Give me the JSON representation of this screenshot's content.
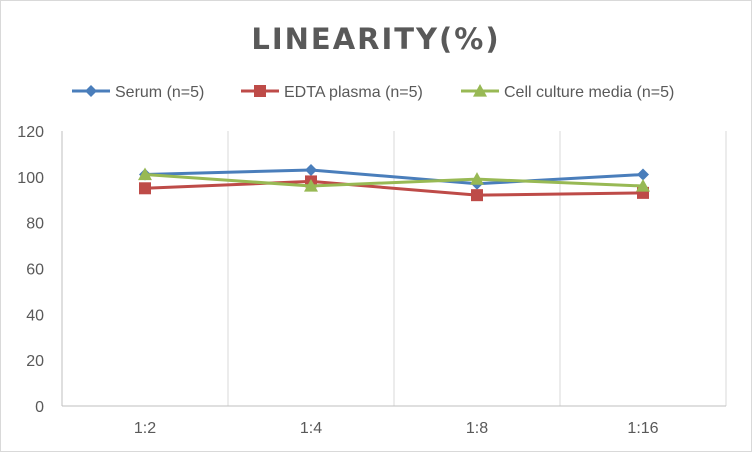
{
  "chart_data": {
    "type": "line",
    "title": "LINEARITY(%)",
    "categories": [
      "1:2",
      "1:4",
      "1:8",
      "1:16"
    ],
    "ylim": [
      0,
      120
    ],
    "yticks": [
      0,
      20,
      40,
      60,
      80,
      100,
      120
    ],
    "grid": "vertical",
    "legend_position": "top",
    "series": [
      {
        "name": "Serum (n=5)",
        "color": "#4a7ebb",
        "marker": "diamond",
        "values": [
          101,
          103,
          97,
          101
        ]
      },
      {
        "name": "EDTA plasma (n=5)",
        "color": "#be4b48",
        "marker": "square",
        "values": [
          95,
          98,
          92,
          93
        ]
      },
      {
        "name": "Cell culture media (n=5)",
        "color": "#98b954",
        "marker": "triangle",
        "values": [
          101,
          96,
          99,
          96
        ]
      }
    ]
  }
}
